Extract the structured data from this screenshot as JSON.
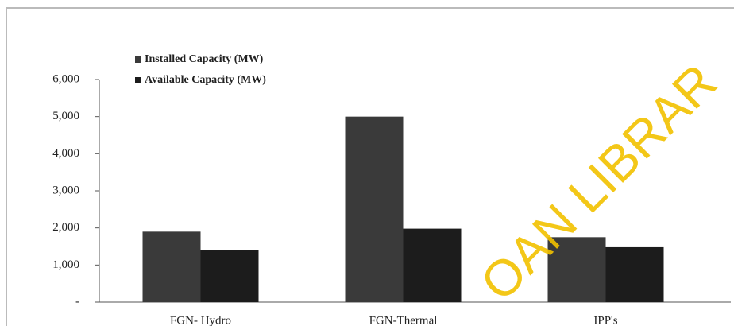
{
  "chart_data": {
    "type": "bar",
    "categories": [
      "FGN- Hydro",
      "FGN-Thermal",
      "IPP's"
    ],
    "series": [
      {
        "name": "Installed Capacity (MW)",
        "color": "#3a3a3a",
        "values": [
          1900,
          5000,
          1750
        ]
      },
      {
        "name": "Available Capacity (MW)",
        "color": "#1c1c1c",
        "values": [
          1400,
          1980,
          1480
        ]
      }
    ],
    "ylim": [
      0,
      6000
    ],
    "yticks": [
      {
        "value": 0,
        "label": "-"
      },
      {
        "value": 1000,
        "label": "1,000"
      },
      {
        "value": 2000,
        "label": "2,000"
      },
      {
        "value": 3000,
        "label": "3,000"
      },
      {
        "value": 4000,
        "label": "4,000"
      },
      {
        "value": 5000,
        "label": "5,000"
      },
      {
        "value": 6000,
        "label": "6,000"
      }
    ],
    "grid": false,
    "legend": "top-left",
    "watermark": "OAN LIBRAR"
  }
}
